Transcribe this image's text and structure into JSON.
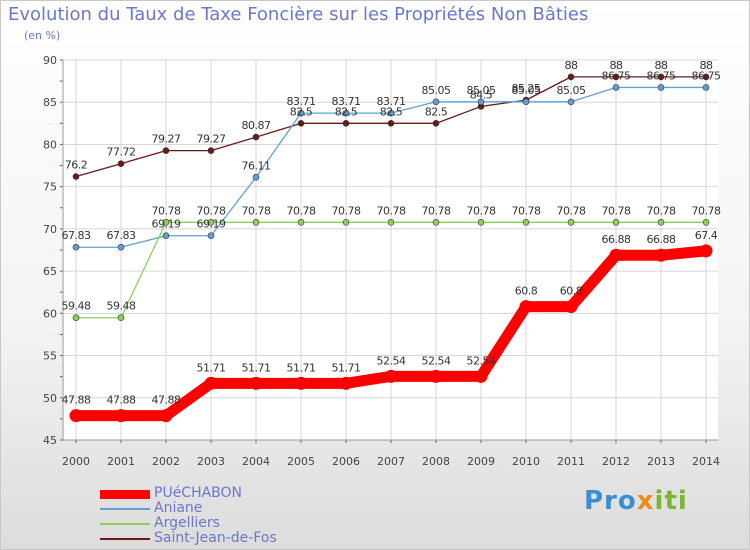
{
  "chart_data": {
    "type": "line",
    "title": "Evolution du Taux de Taxe Foncière sur les Propriétés Non Bâties",
    "ylabel": "(en %)",
    "xlabel": "",
    "ylim": [
      45,
      90
    ],
    "yticks": [
      45,
      50,
      55,
      60,
      65,
      70,
      75,
      80,
      85,
      90
    ],
    "grid": true,
    "categories": [
      "2000",
      "2001",
      "2002",
      "2003",
      "2004",
      "2005",
      "2006",
      "2007",
      "2008",
      "2009",
      "2010",
      "2011",
      "2012",
      "2013",
      "2014"
    ],
    "series": [
      {
        "name": "Saint-Jean-de-Fos",
        "color": "#6b1a1a",
        "values": [
          76.2,
          77.72,
          79.27,
          79.27,
          80.87,
          82.5,
          82.5,
          82.5,
          82.5,
          84.5,
          85.25,
          88,
          88,
          88,
          88
        ],
        "labels": [
          "76.2",
          "77.72",
          "79.27",
          "79.27",
          "80.87",
          "82.5",
          "82.5",
          "82.5",
          "82.5",
          "84.5",
          "85.25",
          "88",
          "88",
          "88",
          "88"
        ]
      },
      {
        "name": "Aniane",
        "color": "#5ea0d6",
        "values": [
          67.83,
          67.83,
          69.19,
          69.19,
          76.11,
          83.71,
          83.71,
          83.71,
          85.05,
          85.05,
          85.05,
          85.05,
          86.75,
          86.75,
          86.75
        ],
        "labels": [
          "67.83",
          "67.83",
          "69.19",
          "69.19",
          "76.11",
          "83.71",
          "83.71",
          "83.71",
          "85.05",
          "85.05",
          "85.05",
          "85.05",
          "86.75",
          "86.75",
          "86.75"
        ]
      },
      {
        "name": "Argelliers",
        "color": "#8ccf5a",
        "values": [
          59.48,
          59.48,
          70.78,
          70.78,
          70.78,
          70.78,
          70.78,
          70.78,
          70.78,
          70.78,
          70.78,
          70.78,
          70.78,
          70.78,
          70.78
        ],
        "labels": [
          "59.48",
          "59.48",
          "70.78",
          "70.78",
          "70.78",
          "70.78",
          "70.78",
          "70.78",
          "70.78",
          "70.78",
          "70.78",
          "70.78",
          "70.78",
          "70.78",
          "70.78"
        ]
      },
      {
        "name": "PUéCHABON",
        "color": "#ff0000",
        "values": [
          47.88,
          47.88,
          47.88,
          51.71,
          51.71,
          51.71,
          51.71,
          52.54,
          52.54,
          52.54,
          60.8,
          60.8,
          66.88,
          66.88,
          67.4
        ],
        "labels": [
          "47.88",
          "47.88",
          "47.88",
          "51.71",
          "51.71",
          "51.71",
          "51.71",
          "52.54",
          "52.54",
          "52.54",
          "60.8",
          "60.8",
          "66.88",
          "66.88",
          "67.4"
        ]
      }
    ]
  },
  "legend": {
    "items": [
      {
        "label": "PUéCHABON",
        "color": "#ff0000"
      },
      {
        "label": "Aniane",
        "color": "#5ea0d6"
      },
      {
        "label": "Argelliers",
        "color": "#8ccf5a"
      },
      {
        "label": "Saint-Jean-de-Fos",
        "color": "#6b1a1a"
      }
    ]
  },
  "logo": {
    "part1": "Pro",
    "part2": "x",
    "part3": "iti"
  }
}
